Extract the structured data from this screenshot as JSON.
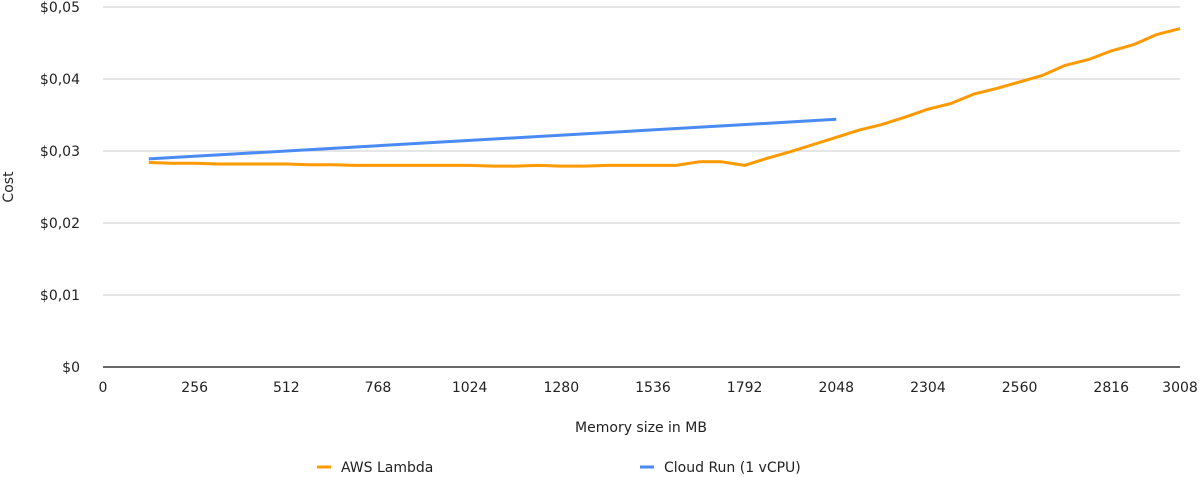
{
  "chart_data": {
    "type": "line",
    "title": "",
    "xlabel": "Memory size in MB",
    "ylabel": "Cost",
    "xlim": [
      0,
      3008
    ],
    "ylim": [
      0,
      0.05
    ],
    "x_ticks": [
      0,
      256,
      512,
      768,
      1024,
      1280,
      1536,
      1792,
      2048,
      2304,
      2560,
      2816,
      3008
    ],
    "y_ticks": [
      0,
      0.01,
      0.02,
      0.03,
      0.04,
      0.05
    ],
    "y_tick_labels": [
      "$0",
      "$0,01",
      "$0,02",
      "$0,03",
      "$0,04",
      "$0,05"
    ],
    "grid": true,
    "legend_position": "bottom",
    "series": [
      {
        "name": "AWS Lambda",
        "color": "#ff9900",
        "x": [
          128,
          192,
          256,
          320,
          384,
          448,
          512,
          576,
          640,
          704,
          768,
          832,
          896,
          960,
          1024,
          1088,
          1152,
          1216,
          1280,
          1344,
          1408,
          1472,
          1536,
          1600,
          1664,
          1728,
          1792,
          1856,
          1920,
          1984,
          2048,
          2112,
          2176,
          2240,
          2304,
          2368,
          2432,
          2496,
          2560,
          2624,
          2688,
          2752,
          2816,
          2880,
          2944,
          3008
        ],
        "values": [
          0.0284,
          0.0283,
          0.0283,
          0.0282,
          0.0282,
          0.0282,
          0.0282,
          0.0281,
          0.0281,
          0.028,
          0.028,
          0.028,
          0.028,
          0.028,
          0.028,
          0.0279,
          0.0279,
          0.028,
          0.0279,
          0.0279,
          0.028,
          0.028,
          0.028,
          0.028,
          0.0285,
          0.0285,
          0.028,
          0.029,
          0.0299,
          0.0309,
          0.0319,
          0.0329,
          0.0337,
          0.0347,
          0.0358,
          0.0366,
          0.0379,
          0.0387,
          0.0396,
          0.0405,
          0.0419,
          0.0427,
          0.0439,
          0.0448,
          0.0462,
          0.047
        ]
      },
      {
        "name": "Cloud Run (1 vCPU)",
        "color": "#4a8af4",
        "x": [
          128,
          2048
        ],
        "values": [
          0.0289,
          0.0344
        ]
      }
    ]
  },
  "axes": {
    "y_title": "Cost",
    "x_title": "Memory size in MB"
  },
  "legend": [
    {
      "label": "AWS Lambda",
      "color": "#ff9900"
    },
    {
      "label": "Cloud Run (1 vCPU)",
      "color": "#4a8af4"
    }
  ],
  "colors": {
    "grid": "#cccccc",
    "baseline": "#333333"
  }
}
